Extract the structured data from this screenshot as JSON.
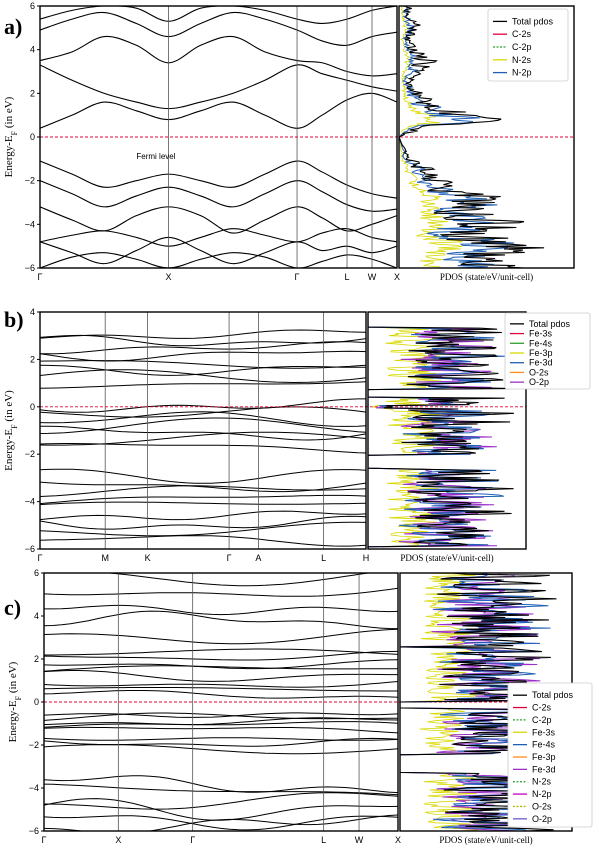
{
  "chart_data": [
    {
      "panel_label": "a)",
      "type": "line",
      "ylabel": "Energy-E",
      "ylabel_sub": "F",
      "ylabel_tail": " (in eV)",
      "ylim": [
        -6,
        6
      ],
      "yticks": [
        "6",
        "4",
        "2",
        "0",
        "−2",
        "−4",
        "−6"
      ],
      "kpoints": [
        "Γ",
        "X",
        "Γ",
        "L",
        "W",
        "X"
      ],
      "kpos": [
        0,
        0.36,
        0.72,
        0.86,
        0.93,
        1.0
      ],
      "fermi_level": 0,
      "annotation": "Fermi level",
      "pdos_xlabel": "PDOS (state/eV/unit-cell)",
      "legend": [
        {
          "label": "Total pdos",
          "color": "#000000",
          "dash": false
        },
        {
          "label": "C-2s",
          "color": "#e0003a",
          "dash": false
        },
        {
          "label": "C-2p",
          "color": "#2ca02c",
          "dash": true
        },
        {
          "label": "N-2s",
          "color": "#d8d800",
          "dash": false
        },
        {
          "label": "N-2p",
          "color": "#1f5fb4",
          "dash": false
        }
      ],
      "bands": [
        {
          "x": [
            0,
            0.09,
            0.18,
            0.27,
            0.36,
            0.45,
            0.54,
            0.63,
            0.72,
            0.79,
            0.86,
            0.93,
            1.0
          ],
          "y": [
            -6.0,
            -5.5,
            -5.3,
            -5.6,
            -6.0,
            -5.6,
            -5.3,
            -5.5,
            -6.0,
            -5.7,
            -5.4,
            -5.6,
            -6.0
          ]
        },
        {
          "x": [
            0,
            0.09,
            0.18,
            0.27,
            0.36,
            0.45,
            0.54,
            0.63,
            0.72,
            0.79,
            0.86,
            0.93,
            1.0
          ],
          "y": [
            -4.8,
            -5.3,
            -5.8,
            -5.2,
            -4.6,
            -5.2,
            -5.8,
            -5.3,
            -4.8,
            -5.2,
            -5.0,
            -5.3,
            -5.0
          ]
        },
        {
          "x": [
            0,
            0.09,
            0.18,
            0.27,
            0.36,
            0.45,
            0.54,
            0.63,
            0.72,
            0.79,
            0.86,
            0.93,
            1.0
          ],
          "y": [
            -4.8,
            -4.5,
            -4.3,
            -4.6,
            -5.0,
            -4.6,
            -4.2,
            -4.5,
            -4.8,
            -4.4,
            -4.2,
            -4.6,
            -4.8
          ]
        },
        {
          "x": [
            0,
            0.09,
            0.18,
            0.27,
            0.36,
            0.45,
            0.54,
            0.63,
            0.72,
            0.79,
            0.86,
            0.93,
            1.0
          ],
          "y": [
            -3.2,
            -3.8,
            -4.3,
            -3.6,
            -3.2,
            -3.6,
            -4.4,
            -3.8,
            -3.2,
            -3.7,
            -4.3,
            -4.0,
            -3.6
          ]
        },
        {
          "x": [
            0,
            0.09,
            0.18,
            0.27,
            0.36,
            0.45,
            0.54,
            0.63,
            0.72,
            0.79,
            0.86,
            0.93,
            1.0
          ],
          "y": [
            -2.0,
            -2.6,
            -3.2,
            -2.7,
            -2.3,
            -2.7,
            -3.2,
            -2.6,
            -2.0,
            -2.5,
            -3.1,
            -3.4,
            -3.3
          ]
        },
        {
          "x": [
            0,
            0.09,
            0.18,
            0.27,
            0.36,
            0.45,
            0.54,
            0.63,
            0.72,
            0.79,
            0.86,
            0.93,
            1.0
          ],
          "y": [
            -1.1,
            -1.7,
            -2.3,
            -2.0,
            -1.7,
            -2.0,
            -2.3,
            -1.7,
            -1.1,
            -1.6,
            -2.2,
            -2.6,
            -2.8
          ]
        },
        {
          "x": [
            0,
            0.09,
            0.18,
            0.27,
            0.36,
            0.45,
            0.54,
            0.63,
            0.72,
            0.79,
            0.86,
            0.93,
            1.0
          ],
          "y": [
            0.4,
            1.0,
            1.6,
            1.2,
            0.8,
            1.2,
            1.6,
            1.0,
            0.4,
            1.0,
            1.7,
            2.0,
            1.6
          ]
        },
        {
          "x": [
            0,
            0.09,
            0.18,
            0.27,
            0.36,
            0.45,
            0.54,
            0.63,
            0.72,
            0.79,
            0.86,
            0.93,
            1.0
          ],
          "y": [
            3.3,
            2.6,
            2.0,
            1.6,
            1.3,
            1.6,
            2.0,
            2.6,
            3.3,
            2.9,
            2.6,
            2.3,
            2.1
          ]
        },
        {
          "x": [
            0,
            0.09,
            0.18,
            0.27,
            0.36,
            0.45,
            0.54,
            0.63,
            0.72,
            0.79,
            0.86,
            0.93,
            1.0
          ],
          "y": [
            3.5,
            3.9,
            4.6,
            4.2,
            3.4,
            4.2,
            4.6,
            3.9,
            3.5,
            3.4,
            3.0,
            2.8,
            2.9
          ]
        },
        {
          "x": [
            0,
            0.09,
            0.18,
            0.27,
            0.36,
            0.45,
            0.54,
            0.63,
            0.72,
            0.79,
            0.86,
            0.93,
            1.0
          ],
          "y": [
            4.9,
            5.4,
            5.7,
            5.2,
            4.6,
            5.2,
            5.7,
            5.4,
            4.9,
            4.4,
            4.2,
            4.6,
            4.8
          ]
        },
        {
          "x": [
            0,
            0.09,
            0.18,
            0.27,
            0.36,
            0.45,
            0.54,
            0.63,
            0.72,
            0.79,
            0.86,
            0.93,
            1.0
          ],
          "y": [
            5.4,
            5.8,
            6.0,
            5.9,
            5.3,
            5.9,
            6.0,
            5.8,
            5.4,
            5.2,
            5.4,
            5.8,
            6.0
          ]
        }
      ],
      "pdos": {
        "energy": [
          -6,
          -5.5,
          -5,
          -4.5,
          -4,
          -3.5,
          -3,
          -2.5,
          -2,
          -1.5,
          -1,
          0,
          0.2,
          0.5,
          0.8,
          1,
          1.3,
          1.6,
          2,
          2.5,
          3,
          3.5,
          4,
          4.5,
          5,
          5.5,
          6
        ],
        "total": [
          0.5,
          0.4,
          0.8,
          0.3,
          0.6,
          0.35,
          0.55,
          0.3,
          0.2,
          0.15,
          0.05,
          0,
          0.05,
          0.15,
          0.9,
          0.4,
          0.25,
          0.15,
          0.1,
          0.05,
          0.1,
          0.15,
          0.08,
          0.05,
          0.1,
          0.06,
          0.05
        ],
        "n2p": [
          0.45,
          0.35,
          0.7,
          0.25,
          0.5,
          0.3,
          0.45,
          0.25,
          0.15,
          0.12,
          0.04,
          0,
          0.04,
          0.1,
          0.6,
          0.3,
          0.2,
          0.1,
          0.08,
          0.04,
          0.08,
          0.1,
          0.05,
          0.04,
          0.08,
          0.05,
          0.04
        ]
      }
    },
    {
      "panel_label": "b)",
      "type": "line",
      "ylabel": "Energy-E",
      "ylabel_sub": "F",
      "ylabel_tail": " (in eV)",
      "ylim": [
        -6,
        4
      ],
      "yticks": [
        "4",
        "2",
        "0",
        "−2",
        "−4",
        "−6"
      ],
      "kpoints": [
        "Γ",
        "M",
        "K",
        "Γ",
        "A",
        "L",
        "H"
      ],
      "kpos": [
        0,
        0.2,
        0.33,
        0.58,
        0.67,
        0.87,
        1.0
      ],
      "fermi_level": 0,
      "pdos_xlabel": "PDOS (state/eV/unit-cell)",
      "legend": [
        {
          "label": "Total pdos",
          "color": "#000000",
          "dash": false
        },
        {
          "label": "Fe-3s",
          "color": "#e0003a",
          "dash": false
        },
        {
          "label": "Fe-4s",
          "color": "#2ca02c",
          "dash": false
        },
        {
          "label": "Fe-3p",
          "color": "#d8d800",
          "dash": false
        },
        {
          "label": "Fe-3d",
          "color": "#1f5fb4",
          "dash": false
        },
        {
          "label": "O-2s",
          "color": "#ff8c1a",
          "dash": false
        },
        {
          "label": "O-2p",
          "color": "#9b30c8",
          "dash": false
        }
      ],
      "band_groups": [
        {
          "levels": [
            1.0,
            1.3,
            1.6,
            1.9,
            2.2,
            2.5,
            2.8,
            3.1
          ],
          "amp": 0.25
        },
        {
          "levels": [
            -1.7,
            -1.4,
            -1.1,
            -0.8,
            -0.5,
            -0.25,
            0.1
          ],
          "amp": 0.3
        },
        {
          "levels": [
            -5.6,
            -5.2,
            -4.9,
            -4.5,
            -4.2,
            -3.9,
            -3.6,
            -3.3,
            -2.9
          ],
          "amp": 0.3
        }
      ]
    },
    {
      "panel_label": "c)",
      "type": "line",
      "ylabel": "Energy-E",
      "ylabel_sub": "F",
      "ylabel_tail": " (in eV)",
      "ylim": [
        -6,
        6
      ],
      "yticks": [
        "6",
        "4",
        "2",
        "0",
        "−2",
        "−4",
        "−6"
      ],
      "kpoints": [
        "Γ",
        "X",
        "Γ",
        "L",
        "W",
        "X"
      ],
      "kpos": [
        0,
        0.21,
        0.42,
        0.79,
        0.89,
        1.0
      ],
      "fermi_level": 0,
      "pdos_xlabel": "PDOS (state/eV/unit-cell)",
      "legend": [
        {
          "label": "Total pdos",
          "color": "#000000",
          "dash": false
        },
        {
          "label": "C-2s",
          "color": "#e0003a",
          "dash": false
        },
        {
          "label": "C-2p",
          "color": "#2ca02c",
          "dash": true
        },
        {
          "label": "Fe-3s",
          "color": "#d8d800",
          "dash": false
        },
        {
          "label": "Fe-4s",
          "color": "#1f5fb4",
          "dash": false
        },
        {
          "label": "Fe-3p",
          "color": "#ff8c1a",
          "dash": false
        },
        {
          "label": "Fe-3d",
          "color": "#9b30c8",
          "dash": false
        },
        {
          "label": "N-2s",
          "color": "#2ca02c",
          "dash": true
        },
        {
          "label": "N-2p",
          "color": "#c800c8",
          "dash": false
        },
        {
          "label": "O-2s",
          "color": "#b8b800",
          "dash": true
        },
        {
          "label": "O-2p",
          "color": "#6a5acd",
          "dash": false
        }
      ],
      "band_groups": [
        {
          "levels": [
            0.3,
            0.6,
            0.9,
            1.2,
            1.5,
            1.8,
            2.1,
            2.3
          ],
          "amp": 0.25
        },
        {
          "levels": [
            -2.2,
            -1.9,
            -1.6,
            -1.3,
            -1.1,
            -0.9,
            -0.7,
            -0.5
          ],
          "amp": 0.2
        },
        {
          "levels": [
            -5.8,
            -5.4,
            -5.0,
            -4.6,
            -4.2,
            -3.8
          ],
          "amp": 0.5
        },
        {
          "levels": [
            3.0,
            3.8,
            4.5,
            5.2,
            5.8
          ],
          "amp": 0.4
        }
      ]
    }
  ]
}
